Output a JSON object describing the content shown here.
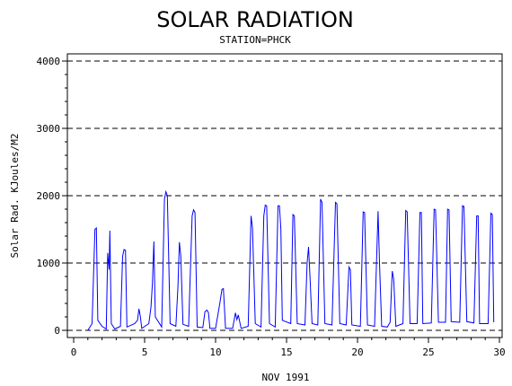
{
  "chart_data": {
    "type": "line",
    "title": "SOLAR RADIATION",
    "subtitle": "STATION=PHCK",
    "xlabel": "NOV 1991",
    "ylabel": "Solar Rad. KJoules/M2",
    "xlim": [
      0,
      30
    ],
    "ylim": [
      0,
      4000
    ],
    "x_ticks": [
      0,
      5,
      10,
      15,
      20,
      25,
      30
    ],
    "y_ticks": [
      0,
      1000,
      2000,
      3000,
      4000
    ],
    "grid": "horizontal-dashed",
    "series": [
      {
        "color": "#0000ff",
        "points": [
          [
            1.0,
            0
          ],
          [
            1.3,
            100
          ],
          [
            1.5,
            1500
          ],
          [
            1.6,
            1520
          ],
          [
            1.7,
            150
          ],
          [
            2.0,
            60
          ],
          [
            2.3,
            20
          ],
          [
            2.4,
            1150
          ],
          [
            2.5,
            900
          ],
          [
            2.55,
            1480
          ],
          [
            2.65,
            100
          ],
          [
            2.9,
            20
          ],
          [
            3.3,
            60
          ],
          [
            3.45,
            1100
          ],
          [
            3.55,
            1200
          ],
          [
            3.65,
            1190
          ],
          [
            3.75,
            50
          ],
          [
            4.3,
            100
          ],
          [
            4.5,
            150
          ],
          [
            4.6,
            320
          ],
          [
            4.7,
            200
          ],
          [
            4.8,
            30
          ],
          [
            5.3,
            100
          ],
          [
            5.45,
            350
          ],
          [
            5.55,
            700
          ],
          [
            5.65,
            1320
          ],
          [
            5.75,
            200
          ],
          [
            6.2,
            50
          ],
          [
            6.4,
            1950
          ],
          [
            6.5,
            2060
          ],
          [
            6.6,
            2000
          ],
          [
            6.8,
            100
          ],
          [
            7.2,
            60
          ],
          [
            7.35,
            650
          ],
          [
            7.45,
            1310
          ],
          [
            7.55,
            1100
          ],
          [
            7.7,
            90
          ],
          [
            8.1,
            60
          ],
          [
            8.35,
            1700
          ],
          [
            8.45,
            1790
          ],
          [
            8.55,
            1750
          ],
          [
            8.7,
            50
          ],
          [
            9.1,
            40
          ],
          [
            9.25,
            280
          ],
          [
            9.4,
            300
          ],
          [
            9.5,
            260
          ],
          [
            9.6,
            30
          ],
          [
            10.0,
            30
          ],
          [
            10.3,
            400
          ],
          [
            10.45,
            610
          ],
          [
            10.55,
            620
          ],
          [
            10.7,
            30
          ],
          [
            11.2,
            30
          ],
          [
            11.4,
            260
          ],
          [
            11.5,
            160
          ],
          [
            11.6,
            230
          ],
          [
            11.8,
            30
          ],
          [
            12.3,
            60
          ],
          [
            12.5,
            1700
          ],
          [
            12.6,
            1520
          ],
          [
            12.8,
            100
          ],
          [
            13.2,
            50
          ],
          [
            13.4,
            1700
          ],
          [
            13.5,
            1860
          ],
          [
            13.6,
            1850
          ],
          [
            13.8,
            100
          ],
          [
            14.2,
            50
          ],
          [
            14.4,
            1850
          ],
          [
            14.5,
            1850
          ],
          [
            14.6,
            1500
          ],
          [
            14.7,
            150
          ],
          [
            15.3,
            100
          ],
          [
            15.45,
            1720
          ],
          [
            15.55,
            1700
          ],
          [
            15.75,
            100
          ],
          [
            16.3,
            80
          ],
          [
            16.45,
            1000
          ],
          [
            16.55,
            1240
          ],
          [
            16.65,
            800
          ],
          [
            16.8,
            100
          ],
          [
            17.2,
            80
          ],
          [
            17.4,
            1950
          ],
          [
            17.5,
            1900
          ],
          [
            17.7,
            100
          ],
          [
            18.2,
            80
          ],
          [
            18.45,
            1900
          ],
          [
            18.55,
            1880
          ],
          [
            18.75,
            100
          ],
          [
            19.2,
            80
          ],
          [
            19.4,
            940
          ],
          [
            19.5,
            900
          ],
          [
            19.6,
            80
          ],
          [
            20.2,
            60
          ],
          [
            20.4,
            1760
          ],
          [
            20.5,
            1750
          ],
          [
            20.7,
            80
          ],
          [
            21.2,
            60
          ],
          [
            21.45,
            1770
          ],
          [
            21.55,
            1000
          ],
          [
            21.7,
            60
          ],
          [
            22.1,
            50
          ],
          [
            22.3,
            120
          ],
          [
            22.45,
            880
          ],
          [
            22.55,
            760
          ],
          [
            22.7,
            60
          ],
          [
            23.2,
            100
          ],
          [
            23.4,
            1780
          ],
          [
            23.5,
            1760
          ],
          [
            23.7,
            100
          ],
          [
            24.2,
            100
          ],
          [
            24.4,
            1750
          ],
          [
            24.5,
            1750
          ],
          [
            24.6,
            100
          ],
          [
            25.2,
            110
          ],
          [
            25.4,
            1800
          ],
          [
            25.5,
            1790
          ],
          [
            25.7,
            120
          ],
          [
            26.2,
            120
          ],
          [
            26.35,
            1800
          ],
          [
            26.45,
            1790
          ],
          [
            26.6,
            130
          ],
          [
            27.2,
            120
          ],
          [
            27.4,
            1850
          ],
          [
            27.5,
            1840
          ],
          [
            27.7,
            130
          ],
          [
            28.2,
            110
          ],
          [
            28.4,
            1700
          ],
          [
            28.5,
            1700
          ],
          [
            28.6,
            100
          ],
          [
            29.2,
            100
          ],
          [
            29.4,
            1740
          ],
          [
            29.5,
            1720
          ],
          [
            29.6,
            120
          ]
        ]
      }
    ]
  }
}
